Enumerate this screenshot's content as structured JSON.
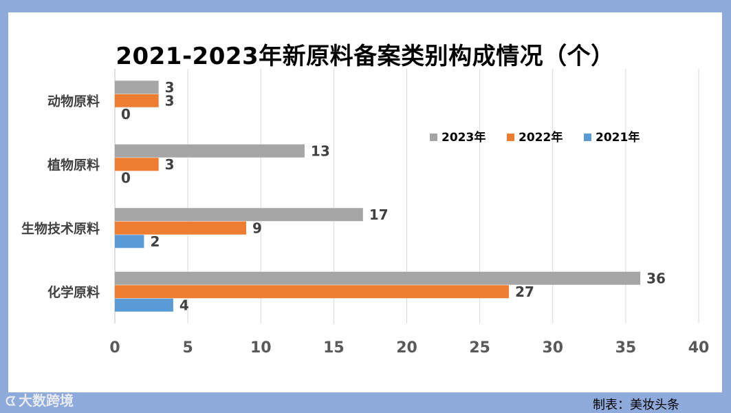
{
  "chart_data": {
    "type": "bar",
    "orientation": "horizontal",
    "title": "2021-2023年新原料备案类别构成情况（个）",
    "categories": [
      "动物原料",
      "植物原料",
      "生物技术原料",
      "化学原料"
    ],
    "series": [
      {
        "name": "2023年",
        "color": "#a5a5a5",
        "values": [
          3,
          13,
          17,
          36
        ]
      },
      {
        "name": "2022年",
        "color": "#ed7d31",
        "values": [
          3,
          3,
          9,
          27
        ]
      },
      {
        "name": "2021年",
        "color": "#5b9bd5",
        "values": [
          0,
          0,
          2,
          4
        ]
      }
    ],
    "xlim": [
      0,
      40
    ],
    "xticks": [
      0,
      5,
      10,
      15,
      20,
      25,
      30,
      35,
      40
    ],
    "grid": true,
    "legend_position": "top-right",
    "xlabel": "",
    "ylabel": ""
  },
  "watermark": {
    "icon": "ᗧ",
    "text": "大数跨境"
  },
  "source": "制表：美妆头条",
  "colors": {
    "frame": "#8eaadb",
    "grid": "#d9d9d9"
  }
}
